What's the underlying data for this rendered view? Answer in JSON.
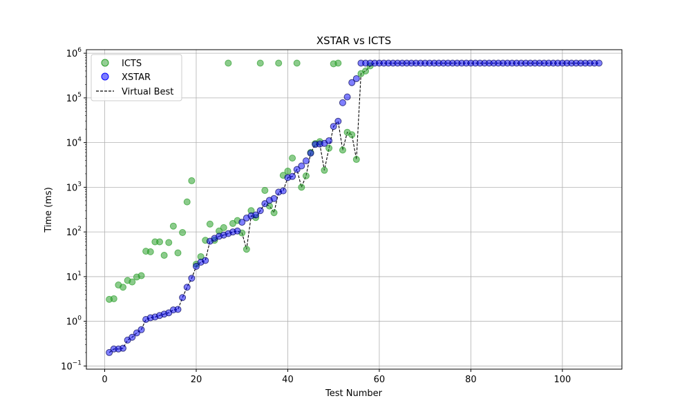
{
  "chart_data": {
    "type": "scatter",
    "title": "XSTAR vs ICTS",
    "xlabel": "Test Number",
    "ylabel": "Time (ms)",
    "xlim": [
      -4,
      113
    ],
    "ylim": [
      0.085,
      1200000
    ],
    "yscale": "log",
    "x_ticks": [
      0,
      20,
      40,
      60,
      80,
      100
    ],
    "y_ticks": [
      0.1,
      1,
      10,
      100,
      1000,
      10000,
      100000,
      1000000
    ],
    "y_tick_labels": [
      {
        "base": "10",
        "exp": "−1"
      },
      {
        "base": "10",
        "exp": "0"
      },
      {
        "base": "10",
        "exp": "1"
      },
      {
        "base": "10",
        "exp": "2"
      },
      {
        "base": "10",
        "exp": "3"
      },
      {
        "base": "10",
        "exp": "4"
      },
      {
        "base": "10",
        "exp": "5"
      },
      {
        "base": "10",
        "exp": "6"
      }
    ],
    "grid": true,
    "legend_position": "top-left",
    "series": [
      {
        "name": "ICTS",
        "kind": "scatter",
        "color": "#2ca02c",
        "x": [
          1,
          2,
          3,
          4,
          5,
          6,
          7,
          8,
          9,
          10,
          11,
          12,
          13,
          14,
          15,
          16,
          17,
          18,
          19,
          20,
          21,
          22,
          23,
          24,
          25,
          26,
          27,
          28,
          29,
          30,
          31,
          32,
          33,
          34,
          35,
          36,
          37,
          38,
          39,
          40,
          41,
          42,
          43,
          44,
          45,
          46,
          47,
          48,
          49,
          50,
          51,
          52,
          53,
          54,
          55,
          56,
          57,
          58
        ],
        "y": [
          3.1,
          3.2,
          6.5,
          5.8,
          8.2,
          7.6,
          9.8,
          10.5,
          37,
          36,
          60,
          60,
          30,
          58,
          135,
          34,
          97,
          470,
          1400,
          19,
          28,
          65,
          150,
          65,
          105,
          125,
          600000,
          155,
          180,
          95,
          41,
          300,
          210,
          600000,
          850,
          380,
          270,
          600000,
          1850,
          2300,
          4500,
          600000,
          1000,
          1800,
          6000,
          9500,
          10500,
          2400,
          7500,
          580000,
          600000,
          6800,
          17000,
          15000,
          4200,
          350000,
          400000,
          520000
        ]
      },
      {
        "name": "XSTAR",
        "kind": "scatter",
        "color": "#0000ff",
        "x": [
          1,
          2,
          3,
          4,
          5,
          6,
          7,
          8,
          9,
          10,
          11,
          12,
          13,
          14,
          15,
          16,
          17,
          18,
          19,
          20,
          21,
          22,
          23,
          24,
          25,
          26,
          27,
          28,
          29,
          30,
          31,
          32,
          33,
          34,
          35,
          36,
          37,
          38,
          39,
          40,
          41,
          42,
          43,
          44,
          45,
          46,
          47,
          48,
          49,
          50,
          51,
          52,
          53,
          54,
          55,
          56,
          57,
          58,
          59,
          60,
          61,
          62,
          63,
          64,
          65,
          66,
          67,
          68,
          69,
          70,
          71,
          72,
          73,
          74,
          75,
          76,
          77,
          78,
          79,
          80,
          81,
          82,
          83,
          84,
          85,
          86,
          87,
          88,
          89,
          90,
          91,
          92,
          93,
          94,
          95,
          96,
          97,
          98,
          99,
          100,
          101,
          102,
          103,
          104,
          105,
          106,
          107,
          108
        ],
        "y": [
          0.2,
          0.24,
          0.24,
          0.25,
          0.38,
          0.44,
          0.55,
          0.65,
          1.1,
          1.2,
          1.25,
          1.35,
          1.45,
          1.55,
          1.8,
          1.85,
          3.4,
          5.8,
          9.2,
          17,
          21,
          23,
          62,
          72,
          80,
          85,
          92,
          100,
          105,
          165,
          205,
          230,
          240,
          300,
          430,
          510,
          560,
          780,
          830,
          1650,
          1750,
          2500,
          3000,
          3900,
          5800,
          9100,
          9300,
          9600,
          11000,
          23000,
          30000,
          78000,
          105000,
          220000,
          270000,
          600000,
          600000,
          600000,
          600000,
          600000,
          600000,
          600000,
          600000,
          600000,
          600000,
          600000,
          600000,
          600000,
          600000,
          600000,
          600000,
          600000,
          600000,
          600000,
          600000,
          600000,
          600000,
          600000,
          600000,
          600000,
          600000,
          600000,
          600000,
          600000,
          600000,
          600000,
          600000,
          600000,
          600000,
          600000,
          600000,
          600000,
          600000,
          600000,
          600000,
          600000,
          600000,
          600000,
          600000,
          600000,
          600000,
          600000,
          600000,
          600000,
          600000,
          600000,
          600000,
          600000
        ]
      },
      {
        "name": "Virtual Best",
        "kind": "line",
        "color": "#000000",
        "x": [
          1,
          2,
          3,
          4,
          5,
          6,
          7,
          8,
          9,
          10,
          11,
          12,
          13,
          14,
          15,
          16,
          17,
          18,
          19,
          20,
          21,
          22,
          23,
          24,
          25,
          26,
          27,
          28,
          29,
          30,
          31,
          32,
          33,
          34,
          35,
          36,
          37,
          38,
          39,
          40,
          41,
          42,
          43,
          44,
          45,
          46,
          47,
          48,
          49,
          50,
          51,
          52,
          53,
          54,
          55,
          56,
          57,
          58,
          59,
          60,
          61,
          62,
          63,
          64,
          65,
          66,
          67,
          68,
          69,
          70,
          71,
          72,
          73,
          74,
          75,
          76,
          77,
          78,
          79,
          80,
          81,
          82,
          83,
          84,
          85,
          86,
          87,
          88,
          89,
          90,
          91,
          92,
          93,
          94,
          95,
          96,
          97,
          98,
          99,
          100,
          101,
          102,
          103,
          104,
          105,
          106,
          107,
          108
        ],
        "y": [
          0.2,
          0.24,
          0.24,
          0.25,
          0.38,
          0.44,
          0.55,
          0.65,
          1.1,
          1.2,
          1.25,
          1.35,
          1.45,
          1.55,
          1.8,
          1.85,
          3.4,
          5.8,
          9.2,
          17,
          21,
          23,
          62,
          65,
          80,
          85,
          92,
          100,
          105,
          95,
          41,
          230,
          210,
          300,
          430,
          380,
          270,
          780,
          830,
          1650,
          1750,
          2500,
          1000,
          1800,
          5800,
          9100,
          9300,
          2400,
          7500,
          23000,
          30000,
          6800,
          17000,
          15000,
          4200,
          350000,
          400000,
          520000,
          600000,
          600000,
          600000,
          600000,
          600000,
          600000,
          600000,
          600000,
          600000,
          600000,
          600000,
          600000,
          600000,
          600000,
          600000,
          600000,
          600000,
          600000,
          600000,
          600000,
          600000,
          600000,
          600000,
          600000,
          600000,
          600000,
          600000,
          600000,
          600000,
          600000,
          600000,
          600000,
          600000,
          600000,
          600000,
          600000,
          600000,
          600000,
          600000,
          600000,
          600000,
          600000,
          600000,
          600000,
          600000,
          600000,
          600000,
          600000,
          600000,
          600000
        ]
      }
    ]
  }
}
